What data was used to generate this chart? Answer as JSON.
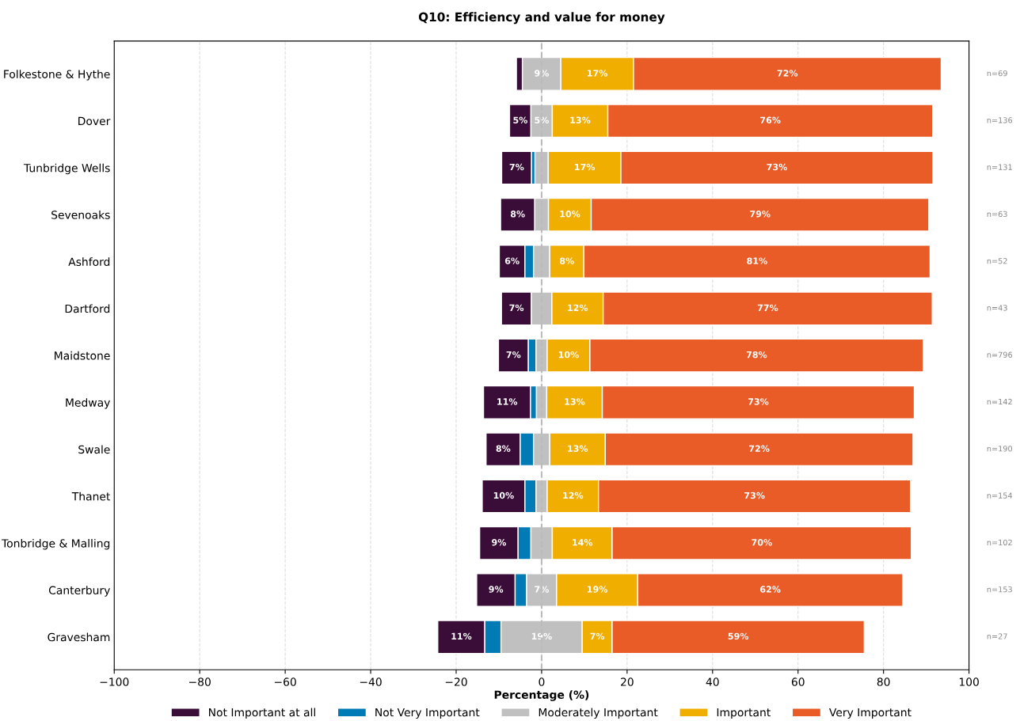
{
  "chart_data": {
    "type": "bar",
    "orientation": "horizontal",
    "title": "Q10: Efficiency and value for money",
    "xlabel": "Percentage (%)",
    "categories": [
      "Folkestone & Hythe",
      "Dover",
      "Tunbridge Wells",
      "Sevenoaks",
      "Ashford",
      "Dartford",
      "Maidstone",
      "Medway",
      "Swale",
      "Thanet",
      "Tonbridge & Malling",
      "Canterbury",
      "Gravesham"
    ],
    "series": [
      {
        "name": "Not Important at all",
        "color": "#3a0d38",
        "base": [
          -5.9,
          -7.5,
          -9.35,
          -9.6,
          -9.9,
          -9.4,
          -10.1,
          -13.6,
          -13.0,
          -13.9,
          -14.5,
          -15.2,
          -24.3
        ],
        "values": [
          1.4,
          5,
          7,
          8,
          6,
          7,
          7,
          11,
          8,
          10,
          9,
          9,
          11
        ],
        "value_labels": [
          null,
          "5%",
          "7%",
          "8%",
          "6%",
          "7%",
          "7%",
          "11%",
          "8%",
          "10%",
          "9%",
          "9%",
          "11%"
        ]
      },
      {
        "name": "Not Very Important",
        "color": "#007bb6",
        "base": [
          null,
          null,
          -2.35,
          null,
          -3.9,
          null,
          -3.1,
          -2.6,
          -5.0,
          -3.9,
          -5.5,
          -6.2,
          -13.3
        ],
        "values": [
          null,
          null,
          0.8,
          null,
          2.0,
          null,
          1.8,
          1.4,
          3.1,
          2.6,
          3.0,
          2.7,
          3.8
        ]
      },
      {
        "name": "Moderately Important",
        "color": "#c0c0c0",
        "base": [
          -4.5,
          -2.5,
          -1.55,
          -1.6,
          -1.9,
          -2.4,
          -1.3,
          -1.2,
          -1.9,
          -1.3,
          -2.5,
          -3.5,
          -9.5
        ],
        "values": [
          9,
          5,
          3.1,
          3.2,
          3.8,
          4.8,
          2.6,
          2.4,
          3.8,
          2.6,
          5.0,
          7,
          19
        ],
        "value_labels": [
          "9%",
          "5%",
          null,
          null,
          null,
          null,
          null,
          null,
          null,
          null,
          null,
          "7%",
          "19%"
        ]
      },
      {
        "name": "Important",
        "color": "#f0ae00",
        "base": [
          4.5,
          2.5,
          1.55,
          1.6,
          1.9,
          2.4,
          1.3,
          1.2,
          1.9,
          1.3,
          2.5,
          3.5,
          9.5
        ],
        "values": [
          17,
          13,
          17,
          10,
          8,
          12,
          10,
          13,
          13,
          12,
          14,
          19,
          7
        ],
        "value_labels": [
          "17%",
          "13%",
          "17%",
          "10%",
          "8%",
          "12%",
          "10%",
          "13%",
          "13%",
          "12%",
          "14%",
          "19%",
          "7%"
        ]
      },
      {
        "name": "Very Important",
        "color": "#e95b27",
        "base": [
          21.5,
          15.5,
          18.55,
          11.6,
          9.9,
          14.4,
          11.3,
          14.2,
          14.9,
          13.3,
          16.5,
          22.5,
          16.5
        ],
        "values": [
          72,
          76,
          73,
          79,
          81,
          77,
          78,
          73,
          72,
          73,
          70,
          62,
          59
        ],
        "value_labels": [
          "72%",
          "76%",
          "73%",
          "79%",
          "81%",
          "77%",
          "78%",
          "73%",
          "72%",
          "73%",
          "70%",
          "62%",
          "59%"
        ]
      }
    ],
    "xlim": [
      -100,
      100
    ],
    "xticks": [
      {
        "value": -100,
        "label": "−100"
      },
      {
        "value": -80,
        "label": "−80"
      },
      {
        "value": -60,
        "label": "−60"
      },
      {
        "value": -40,
        "label": "−40"
      },
      {
        "value": -20,
        "label": "−20"
      },
      0,
      20,
      40,
      60,
      80,
      100
    ],
    "grid": "x",
    "legend": "bottom",
    "ref_lines": [
      {
        "axis": "x",
        "value": 0,
        "color": "#bbbbbb",
        "line_style": "dashed"
      }
    ],
    "annotations": [
      "n=69",
      "n=136",
      "n=131",
      "n=63",
      "n=52",
      "n=43",
      "n=796",
      "n=142",
      "n=190",
      "n=154",
      "n=102",
      "n=153",
      "n=27"
    ]
  }
}
